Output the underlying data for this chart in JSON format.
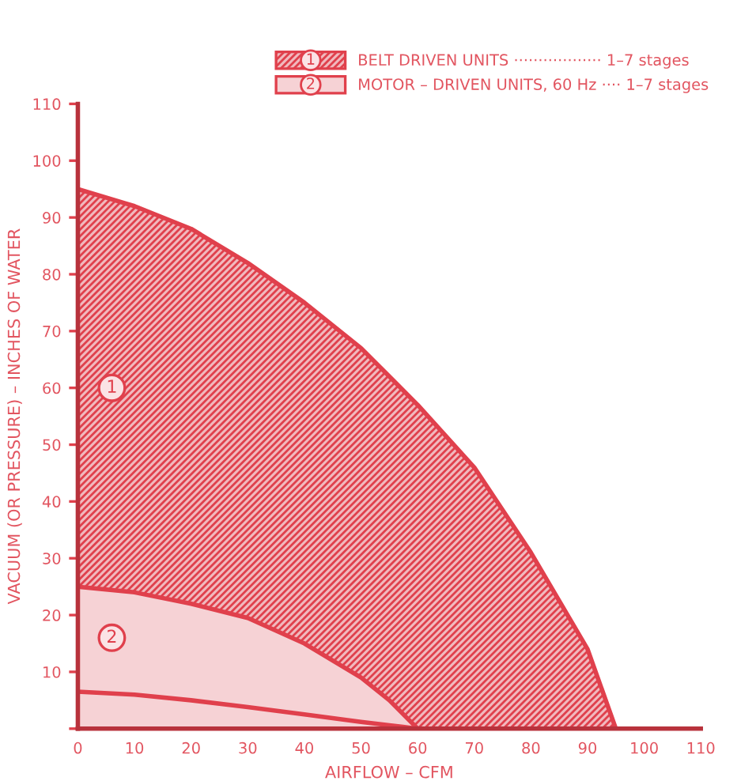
{
  "chart_data": {
    "type": "area",
    "xlabel": "AIRFLOW – CFM",
    "ylabel": "VACUUM (OR PRESSURE) – INCHES OF WATER",
    "x": [
      0,
      10,
      20,
      30,
      40,
      50,
      55,
      60,
      70,
      80,
      90,
      95
    ],
    "series": [
      {
        "name": "BELT DRIVEN UNITS ·················· 1–7 stages",
        "color": "#f1b9be",
        "values": [
          95,
          92,
          88,
          82,
          75,
          67,
          62,
          57,
          46,
          31,
          14,
          0
        ]
      },
      {
        "name": "MOTOR – DRIVEN UNITS, 60 Hz ···· 1–7 stages",
        "color": "#f6d2d5",
        "x": [
          0,
          10,
          20,
          30,
          40,
          50,
          55,
          60
        ],
        "values": [
          25,
          24,
          22,
          19.5,
          15,
          9,
          5,
          0
        ]
      },
      {
        "type": "line",
        "color": "#e0404c",
        "x": [
          0,
          10,
          20,
          30,
          40,
          50,
          55,
          60
        ],
        "values": [
          6.5,
          6,
          5,
          3.8,
          2.5,
          1.2,
          0.6,
          0
        ]
      }
    ],
    "annotations": [
      {
        "text": "1",
        "x": 6,
        "y": 60
      },
      {
        "text": "2",
        "x": 6,
        "y": 16
      }
    ],
    "xlim": [
      0,
      110
    ],
    "ylim": [
      0,
      110
    ],
    "xticks": [
      0,
      10,
      20,
      30,
      40,
      50,
      60,
      70,
      80,
      90,
      100,
      110
    ],
    "yticks": [
      {
        "value": 0,
        "label": null
      },
      10,
      20,
      30,
      40,
      50,
      60,
      70,
      80,
      90,
      100,
      110
    ],
    "grid": false,
    "legend": "top right"
  }
}
